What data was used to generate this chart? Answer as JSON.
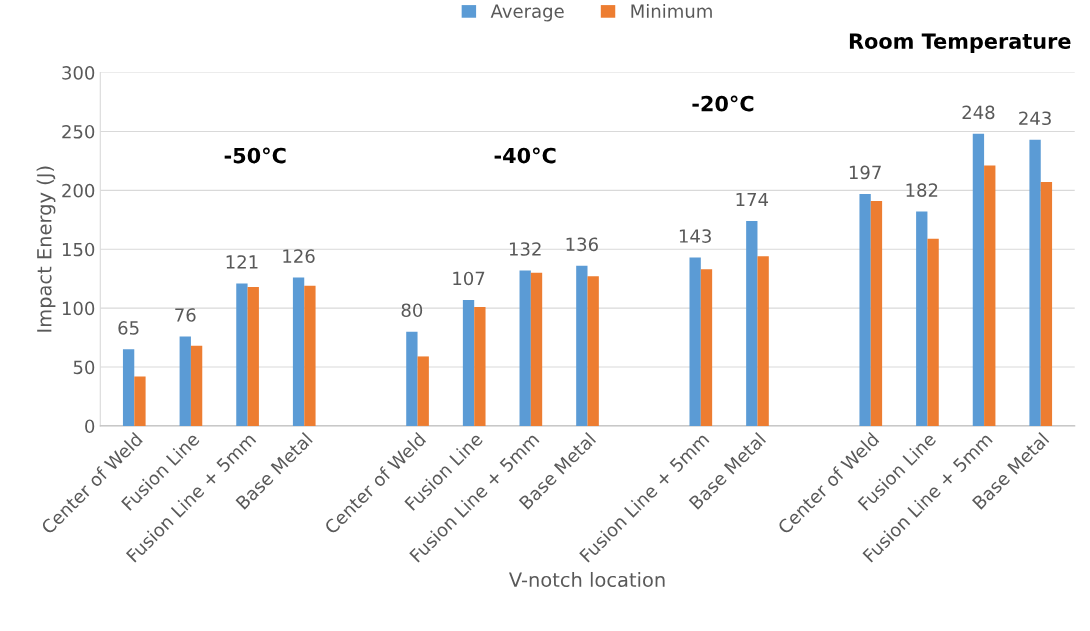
{
  "chart_data": {
    "type": "bar",
    "xlabel": "V-notch location",
    "ylabel": "Impact Energy (J)",
    "categories": [
      "Center of Weld",
      "Fusion Line",
      "Fusion Line + 5mm",
      "Base Metal",
      null,
      "Center of Weld",
      "Fusion Line",
      "Fusion Line + 5mm",
      "Base Metal",
      null,
      "Fusion Line + 5mm",
      "Base Metal",
      null,
      "Center of Weld",
      "Fusion Line",
      "Fusion Line + 5mm",
      "Base Metal"
    ],
    "series": [
      {
        "name": "Average",
        "color": "#5b9bd5",
        "values": [
          65,
          76,
          121,
          126,
          null,
          80,
          107,
          132,
          136,
          null,
          143,
          174,
          null,
          197,
          182,
          248,
          243
        ],
        "value_labels": [
          "65",
          "76",
          "121",
          "126",
          null,
          "80",
          "107",
          "132",
          "136",
          null,
          "143",
          "174",
          null,
          "197",
          "182",
          "248",
          "243"
        ]
      },
      {
        "name": "Minimum",
        "color": "#ed7d31",
        "values": [
          42,
          68,
          118,
          119,
          null,
          59,
          101,
          130,
          127,
          null,
          133,
          144,
          null,
          191,
          159,
          221,
          207
        ]
      }
    ],
    "ylim": [
      0,
      300
    ],
    "yticks": [
      0,
      50,
      100,
      150,
      200,
      250,
      300
    ],
    "grid": "y",
    "legend": "top",
    "annotations": [
      "-50°C",
      "-40°C",
      "-20°C",
      "Room Temperature"
    ]
  }
}
